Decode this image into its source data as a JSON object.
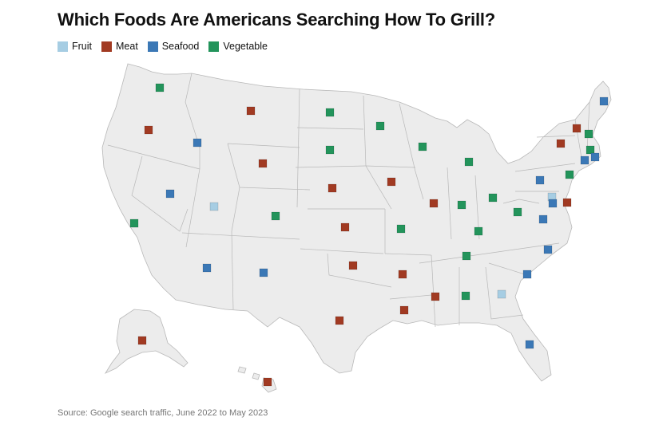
{
  "title": "Which Foods Are Americans Searching How To Grill?",
  "legend": [
    {
      "label": "Fruit",
      "color": "#a6cde3"
    },
    {
      "label": "Meat",
      "color": "#a13a22"
    },
    {
      "label": "Seafood",
      "color": "#3b78b6"
    },
    {
      "label": "Vegetable",
      "color": "#23945b"
    }
  ],
  "source": "Source: Google search traffic, June 2022 to May 2023",
  "map_style": {
    "land": "#ececec",
    "border": "#b8b8b8"
  },
  "states": [
    {
      "state": "Washington",
      "category": "Vegetable"
    },
    {
      "state": "Oregon",
      "category": "Meat"
    },
    {
      "state": "California",
      "category": "Vegetable"
    },
    {
      "state": "Idaho",
      "category": "Seafood"
    },
    {
      "state": "Nevada",
      "category": "Seafood"
    },
    {
      "state": "Montana",
      "category": "Meat"
    },
    {
      "state": "Wyoming",
      "category": "Meat"
    },
    {
      "state": "Utah",
      "category": "Fruit"
    },
    {
      "state": "Arizona",
      "category": "Seafood"
    },
    {
      "state": "Colorado",
      "category": "Vegetable"
    },
    {
      "state": "New Mexico",
      "category": "Seafood"
    },
    {
      "state": "North Dakota",
      "category": "Vegetable"
    },
    {
      "state": "South Dakota",
      "category": "Vegetable"
    },
    {
      "state": "Nebraska",
      "category": "Meat"
    },
    {
      "state": "Kansas",
      "category": "Meat"
    },
    {
      "state": "Oklahoma",
      "category": "Meat"
    },
    {
      "state": "Texas",
      "category": "Meat"
    },
    {
      "state": "Minnesota",
      "category": "Vegetable"
    },
    {
      "state": "Iowa",
      "category": "Meat"
    },
    {
      "state": "Missouri",
      "category": "Vegetable"
    },
    {
      "state": "Arkansas",
      "category": "Meat"
    },
    {
      "state": "Louisiana",
      "category": "Meat"
    },
    {
      "state": "Wisconsin",
      "category": "Vegetable"
    },
    {
      "state": "Illinois",
      "category": "Meat"
    },
    {
      "state": "Michigan",
      "category": "Vegetable"
    },
    {
      "state": "Indiana",
      "category": "Vegetable"
    },
    {
      "state": "Ohio",
      "category": "Vegetable"
    },
    {
      "state": "Kentucky",
      "category": "Vegetable"
    },
    {
      "state": "Tennessee",
      "category": "Vegetable"
    },
    {
      "state": "Mississippi",
      "category": "Meat"
    },
    {
      "state": "Alabama",
      "category": "Vegetable"
    },
    {
      "state": "Georgia",
      "category": "Fruit"
    },
    {
      "state": "Florida",
      "category": "Seafood"
    },
    {
      "state": "South Carolina",
      "category": "Seafood"
    },
    {
      "state": "North Carolina",
      "category": "Seafood"
    },
    {
      "state": "Virginia",
      "category": "Seafood"
    },
    {
      "state": "West Virginia",
      "category": "Vegetable"
    },
    {
      "state": "Pennsylvania",
      "category": "Seafood"
    },
    {
      "state": "New York",
      "category": "Meat"
    },
    {
      "state": "Vermont",
      "category": "Meat"
    },
    {
      "state": "New Hampshire",
      "category": "Vegetable"
    },
    {
      "state": "Maine",
      "category": "Seafood"
    },
    {
      "state": "Massachusetts",
      "category": "Vegetable"
    },
    {
      "state": "Rhode Island",
      "category": "Seafood"
    },
    {
      "state": "Connecticut",
      "category": "Seafood"
    },
    {
      "state": "New Jersey",
      "category": "Vegetable"
    },
    {
      "state": "Delaware",
      "category": "Meat"
    },
    {
      "state": "Maryland",
      "category": "Fruit"
    },
    {
      "state": "District of Columbia",
      "category": "Seafood"
    },
    {
      "state": "Alaska",
      "category": "Meat"
    },
    {
      "state": "Hawaii",
      "category": "Meat"
    }
  ]
}
